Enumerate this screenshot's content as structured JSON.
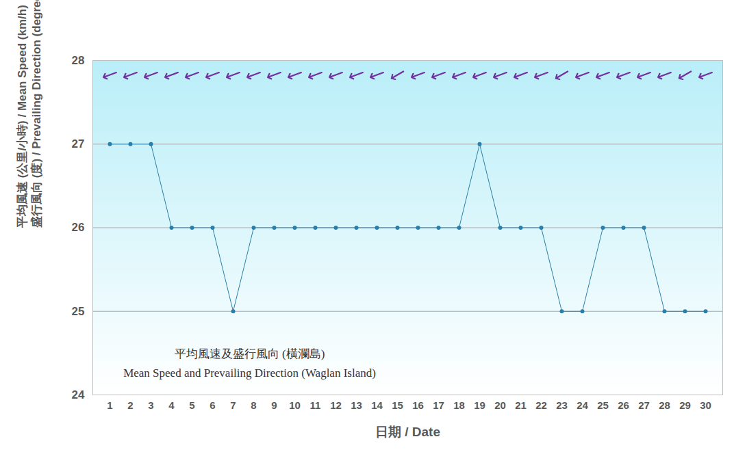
{
  "chart_data": {
    "type": "line",
    "title": "平均風速及盛行風向 (橫瀾島)",
    "subtitle": "Mean Speed and Prevailing Direction (Waglan Island)",
    "x_label": "日期 / Date",
    "y_label": [
      "平均風速 (公里/小時) / Mean Speed (km/h)",
      "盛行風向 (度) / Prevailing Direction (degrees)"
    ],
    "categories": [
      1,
      2,
      3,
      4,
      5,
      6,
      7,
      8,
      9,
      10,
      11,
      12,
      13,
      14,
      15,
      16,
      17,
      18,
      19,
      20,
      21,
      22,
      23,
      24,
      25,
      26,
      27,
      28,
      29,
      30
    ],
    "values": [
      27,
      27,
      27,
      26,
      26,
      26,
      25,
      26,
      26,
      26,
      26,
      26,
      26,
      26,
      26,
      26,
      26,
      26,
      27,
      26,
      26,
      26,
      25,
      25,
      26,
      26,
      26,
      25,
      25,
      25
    ],
    "directions": [
      70,
      70,
      70,
      70,
      70,
      70,
      70,
      70,
      70,
      70,
      70,
      70,
      70,
      70,
      60,
      70,
      70,
      70,
      70,
      70,
      70,
      70,
      60,
      70,
      70,
      70,
      70,
      70,
      60,
      70
    ],
    "color": "#2a7fa8",
    "marker": "circle",
    "ylim": [
      24,
      28
    ],
    "yticks": [
      24,
      25,
      26,
      27,
      28
    ],
    "grid": true
  }
}
